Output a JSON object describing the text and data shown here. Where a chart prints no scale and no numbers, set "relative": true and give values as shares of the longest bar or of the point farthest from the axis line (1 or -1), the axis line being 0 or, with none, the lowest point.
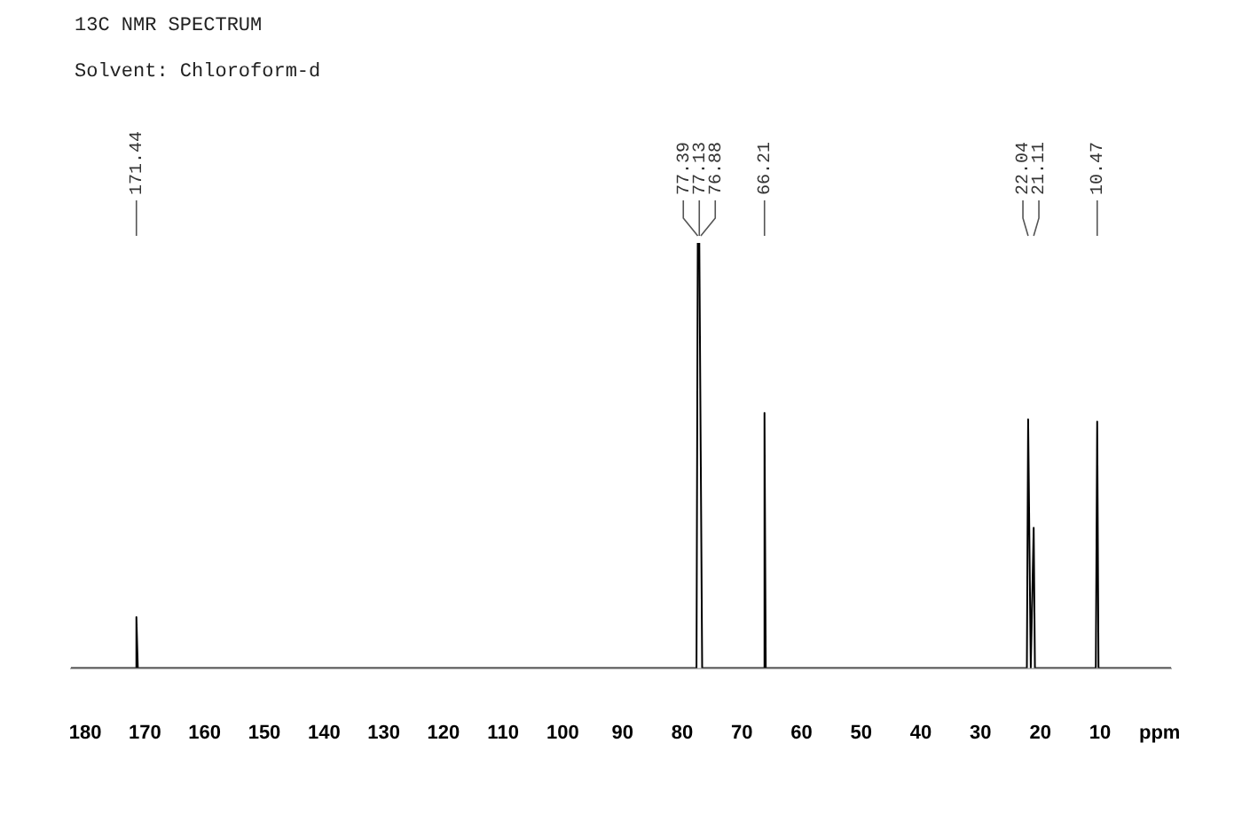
{
  "chart_data": {
    "type": "line",
    "title": "13C NMR SPECTRUM",
    "subtitle": "Solvent: Chloroform-d",
    "relative": true,
    "x": [
      182.4,
      171.65,
      171.44,
      171.2,
      77.6,
      77.39,
      77.13,
      76.88,
      76.65,
      66.4,
      66.21,
      66.0,
      22.25,
      22.04,
      21.6,
      21.11,
      20.9,
      10.7,
      10.47,
      10.25,
      -1.9
    ],
    "series": [
      {
        "color": "#000000",
        "values": [
          0,
          0,
          0.12,
          0,
          0,
          1,
          1,
          1,
          0,
          0,
          0.6,
          0,
          0,
          0.585,
          0,
          0.33,
          0,
          0,
          0.58,
          0,
          0
        ]
      }
    ],
    "xlim": [
      182.4,
      -1.9
    ],
    "xticks": [
      180,
      170,
      160,
      150,
      140,
      130,
      120,
      110,
      100,
      90,
      80,
      70,
      60,
      50,
      40,
      30,
      20,
      10,
      {
        "value": 0,
        "label": "ppm"
      }
    ],
    "grid": false,
    "legend": false,
    "marker": "none",
    "line_style": "solid",
    "annotations": [
      {
        "text": "171.44",
        "x": 171.44
      },
      {
        "text": "77.39",
        "x": 77.39
      },
      {
        "text": "77.13",
        "x": 77.13
      },
      {
        "text": "76.88",
        "x": 76.88
      },
      {
        "text": "66.21",
        "x": 66.21
      },
      {
        "text": "22.04",
        "x": 22.04
      },
      {
        "text": "21.11",
        "x": 21.11
      },
      {
        "text": "10.47",
        "x": 10.47
      }
    ]
  }
}
